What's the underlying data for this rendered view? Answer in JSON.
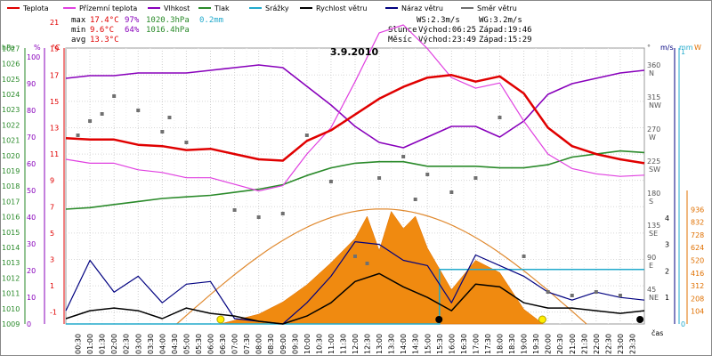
{
  "chart_data": {
    "type": "line",
    "title": "3.9.2010",
    "x_ticks": [
      "00:30",
      "01:00",
      "01:30",
      "02:00",
      "02:30",
      "03:00",
      "03:30",
      "04:00",
      "04:30",
      "05:00",
      "05:30",
      "06:00",
      "06:30",
      "07:00",
      "07:30",
      "08:00",
      "08:30",
      "09:00",
      "09:30",
      "10:00",
      "10:30",
      "11:00",
      "11:30",
      "12:00",
      "12:30",
      "13:00",
      "13:30",
      "14:00",
      "14:30",
      "15:00",
      "15:30",
      "16:00",
      "16:30",
      "17:00",
      "17:30",
      "18:00",
      "18:30",
      "19:00",
      "19:30",
      "20:00",
      "20:30",
      "21:00",
      "21:30",
      "22:00",
      "22:30",
      "23:00",
      "23:30"
    ],
    "x_unit_label": "čas",
    "legend": [
      {
        "name": "Teplota",
        "color": "#e00000"
      },
      {
        "name": "Přízemní teplota",
        "color": "#e040e0"
      },
      {
        "name": "Vlhkost",
        "color": "#8800bb"
      },
      {
        "name": "Tlak",
        "color": "#2a8a2a"
      },
      {
        "name": "Srážky",
        "color": "#22aacc"
      },
      {
        "name": "Rychlost větru",
        "color": "#000000"
      },
      {
        "name": "Náraz větru",
        "color": "#000080"
      },
      {
        "name": "Směr větru",
        "color": "#707070"
      }
    ],
    "stats": {
      "max": {
        "label": "max",
        "temp": "17.4°C",
        "hum": "97%",
        "press": "1020.3hPa",
        "rain": "0.2mm"
      },
      "min": {
        "label": "min",
        "temp": "9.6°C",
        "hum": "64%",
        "press": "1016.4hPa"
      },
      "avg": {
        "label": "avg",
        "temp": "13.3°C"
      }
    },
    "wind_info": {
      "ws": "WS:2.3m/s",
      "wg": "WG:3.2m/s"
    },
    "sun": {
      "label": "Slunce",
      "rise": "Východ:06:25",
      "set": "Západ:19:46"
    },
    "moon": {
      "label": "Měsíc",
      "rise": "Východ:23:49",
      "set": "Západ:15:29"
    },
    "axes": {
      "pressure": {
        "unit": "hPa",
        "ticks": [
          "1027",
          "1026",
          "1025",
          "1024",
          "1023",
          "1022",
          "1021",
          "1020",
          "1019",
          "1018",
          "1017",
          "1016",
          "1015",
          "1014",
          "1013",
          "1012",
          "1011",
          "1010",
          "1009"
        ]
      },
      "humidity": {
        "unit": "%",
        "ticks": [
          "100",
          "90",
          "80",
          "70",
          "60",
          "50",
          "40",
          "30",
          "20",
          "10",
          "0"
        ]
      },
      "temperature": {
        "unit": "°C",
        "ticks": [
          "21",
          "19",
          "17",
          "15",
          "13",
          "11",
          "9",
          "7",
          "5",
          "3",
          "1",
          "-1"
        ]
      },
      "direction": {
        "unit": "°",
        "ticks": [
          [
            "360",
            "N"
          ],
          [
            "315",
            "NW"
          ],
          [
            "270",
            "W"
          ],
          [
            "225",
            "SW"
          ],
          [
            "180",
            "S"
          ],
          [
            "135",
            "SE"
          ],
          [
            "90",
            "E"
          ],
          [
            "45",
            "NE"
          ]
        ]
      },
      "wind": {
        "unit": "m/s",
        "ticks": [
          "4",
          "3",
          "2",
          "1"
        ]
      },
      "rain": {
        "unit": "mm",
        "ticks": [
          "1",
          "0"
        ]
      },
      "radiation": {
        "unit": "W",
        "ticks": [
          "936",
          "832",
          "728",
          "624",
          "520",
          "416",
          "312",
          "208",
          "104"
        ]
      }
    },
    "series": [
      {
        "name": "Teplota",
        "x": [
          0,
          1,
          2,
          3,
          4,
          5,
          6,
          7,
          8,
          9,
          10,
          11,
          12,
          13,
          14,
          15,
          16,
          17,
          18,
          19,
          20,
          21,
          22,
          23,
          24
        ],
        "values": [
          12.2,
          12.1,
          12.1,
          11.7,
          11.6,
          11.3,
          11.4,
          11.0,
          10.6,
          10.5,
          12.0,
          12.8,
          14.0,
          15.2,
          16.1,
          16.8,
          17.0,
          16.5,
          16.9,
          15.6,
          13.0,
          11.6,
          11.0,
          10.6,
          10.3
        ]
      },
      {
        "name": "Přízemní teplota",
        "x": [
          0,
          1,
          2,
          3,
          4,
          5,
          6,
          7,
          8,
          9,
          10,
          11,
          12,
          13,
          14,
          15,
          16,
          17,
          18,
          19,
          20,
          21,
          22,
          23,
          24
        ],
        "values": [
          10.6,
          10.3,
          10.3,
          9.8,
          9.6,
          9.2,
          9.2,
          8.7,
          8.2,
          8.6,
          11.0,
          13.0,
          16.5,
          20.2,
          20.8,
          19.0,
          16.8,
          16.0,
          16.4,
          13.5,
          11.0,
          9.9,
          9.5,
          9.3,
          9.4
        ]
      },
      {
        "name": "Vlhkost",
        "x": [
          0,
          1,
          2,
          3,
          4,
          5,
          6,
          7,
          8,
          9,
          10,
          11,
          12,
          13,
          14,
          15,
          16,
          17,
          18,
          19,
          20,
          21,
          22,
          23,
          24
        ],
        "values": [
          92,
          93,
          93,
          94,
          94,
          94,
          95,
          96,
          97,
          96,
          89,
          82,
          74,
          68,
          66,
          70,
          74,
          74,
          70,
          76,
          86,
          90,
          92,
          94,
          95
        ]
      },
      {
        "name": "Tlak",
        "x": [
          0,
          1,
          2,
          3,
          4,
          5,
          6,
          7,
          8,
          9,
          10,
          11,
          12,
          13,
          14,
          15,
          16,
          17,
          18,
          19,
          20,
          21,
          22,
          23,
          24
        ],
        "values": [
          1016.5,
          1016.6,
          1016.8,
          1017.0,
          1017.2,
          1017.3,
          1017.4,
          1017.6,
          1017.8,
          1018.1,
          1018.7,
          1019.2,
          1019.5,
          1019.6,
          1019.6,
          1019.3,
          1019.3,
          1019.3,
          1019.2,
          1019.2,
          1019.4,
          1019.9,
          1020.1,
          1020.3,
          1020.2
        ]
      },
      {
        "name": "Srážky",
        "x": [
          0,
          15.5,
          15.5,
          24
        ],
        "values": [
          0,
          0,
          0.2,
          0.2
        ]
      },
      {
        "name": "Rychlost větru",
        "x": [
          0,
          1,
          2,
          3,
          4,
          5,
          6,
          7,
          8,
          9,
          10,
          11,
          12,
          13,
          14,
          15,
          16,
          17,
          18,
          19,
          20,
          21,
          22,
          23,
          24
        ],
        "values": [
          0.2,
          0.5,
          0.6,
          0.5,
          0.2,
          0.6,
          0.4,
          0.3,
          0.1,
          0.0,
          0.3,
          0.8,
          1.6,
          1.9,
          1.4,
          1.0,
          0.5,
          1.5,
          1.4,
          0.8,
          0.6,
          0.6,
          0.5,
          0.4,
          0.5
        ]
      },
      {
        "name": "Náraz větru",
        "x": [
          0,
          1,
          2,
          3,
          4,
          5,
          6,
          7,
          8,
          9,
          10,
          11,
          12,
          13,
          14,
          15,
          16,
          17,
          18,
          19,
          20,
          21,
          22,
          23,
          24
        ],
        "values": [
          0.5,
          2.4,
          1.2,
          1.8,
          0.8,
          1.5,
          1.6,
          0.2,
          0.1,
          0.0,
          0.8,
          1.8,
          3.1,
          3.0,
          2.4,
          2.2,
          0.8,
          2.6,
          2.2,
          1.8,
          1.2,
          0.9,
          1.2,
          1.0,
          0.9
        ]
      },
      {
        "name": "Směr větru",
        "x": [
          0.5,
          1,
          1.5,
          2,
          3,
          4,
          4.3,
          5,
          7,
          8,
          9,
          10,
          11,
          12,
          12.5,
          13,
          14,
          14.5,
          15,
          16,
          17,
          18,
          19,
          20,
          21,
          22,
          23
        ],
        "values": [
          265,
          285,
          295,
          320,
          300,
          270,
          290,
          255,
          160,
          150,
          155,
          265,
          200,
          95,
          85,
          205,
          235,
          175,
          210,
          185,
          205,
          290,
          95,
          45,
          40,
          45,
          40
        ]
      },
      {
        "name": "Sluneční záření",
        "x": [
          6.4,
          8,
          9,
          10,
          11,
          12,
          12.5,
          13,
          13.5,
          14,
          14.5,
          15,
          16,
          17,
          18,
          19,
          19.8
        ],
        "values": [
          0,
          80,
          180,
          320,
          500,
          700,
          880,
          600,
          920,
          780,
          880,
          620,
          280,
          520,
          420,
          120,
          0
        ]
      }
    ]
  }
}
